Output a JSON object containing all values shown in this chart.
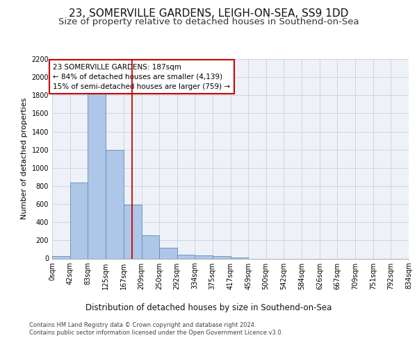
{
  "title_line1": "23, SOMERVILLE GARDENS, LEIGH-ON-SEA, SS9 1DD",
  "title_line2": "Size of property relative to detached houses in Southend-on-Sea",
  "xlabel": "Distribution of detached houses by size in Southend-on-Sea",
  "ylabel": "Number of detached properties",
  "footnote1": "Contains HM Land Registry data © Crown copyright and database right 2024.",
  "footnote2": "Contains public sector information licensed under the Open Government Licence v3.0.",
  "annotation_line1": "23 SOMERVILLE GARDENS: 187sqm",
  "annotation_line2": "← 84% of detached houses are smaller (4,139)",
  "annotation_line3": "15% of semi-detached houses are larger (759) →",
  "bin_edges": [
    0,
    42,
    83,
    125,
    167,
    209,
    250,
    292,
    334,
    375,
    417,
    459,
    500,
    542,
    584,
    626,
    667,
    709,
    751,
    792,
    834
  ],
  "bin_counts": [
    25,
    840,
    1850,
    1200,
    590,
    255,
    120,
    40,
    35,
    25,
    10,
    0,
    0,
    0,
    0,
    0,
    0,
    0,
    0,
    0
  ],
  "bar_color": "#aec6e8",
  "bar_edge_color": "#5a8fc0",
  "vline_color": "#cc0000",
  "vline_x": 187,
  "ylim": [
    0,
    2200
  ],
  "yticks": [
    0,
    200,
    400,
    600,
    800,
    1000,
    1200,
    1400,
    1600,
    1800,
    2000,
    2200
  ],
  "grid_color": "#c8d0dc",
  "bg_color": "#eef2f8",
  "annotation_box_facecolor": "#ffffff",
  "annotation_box_edge": "#cc0000",
  "title_fontsize": 11,
  "subtitle_fontsize": 9.5,
  "ylabel_fontsize": 8,
  "xlabel_fontsize": 8.5,
  "tick_fontsize": 7,
  "annotation_fontsize": 7.5,
  "footnote_fontsize": 6
}
